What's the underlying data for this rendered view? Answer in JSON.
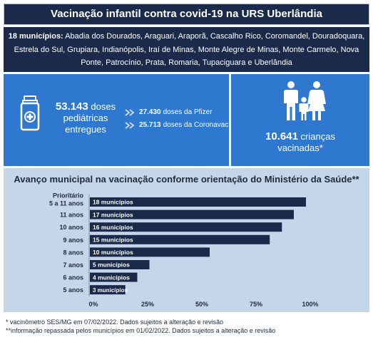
{
  "header": {
    "title": "Vacinação infantil contra covid-19 na URS Uberlândia"
  },
  "municipios": {
    "label": "18 municípios:",
    "list": "Abadia dos Dourados, Araguari, Araporã, Cascalho Rico, Coromandel, Douradoquara, Estrela do Sul, Grupiara, Indianópolis, Iraí de Minas, Monte Alegre de Minas, Monte Carmelo, Nova Ponte, Patrocínio, Prata, Romaria, Tupaciguara e Uberlândia"
  },
  "doses": {
    "total": "53.143",
    "total_label_1": "doses",
    "total_label_2": "pediátricas",
    "total_label_3": "entregues",
    "pfizer_value": "27.430",
    "pfizer_label": "doses da Pfizer",
    "coronavac_value": "25.713",
    "coronavac_label": "doses da Coronavac",
    "icon": "vaccine-vial-icon"
  },
  "children": {
    "value": "10.641",
    "label_1": "crianças",
    "label_2": "vacinadas*",
    "icon": "family-icon"
  },
  "chart": {
    "title": "Avanço municipal na vacinação conforme orientação do Ministério da Saúde**"
  },
  "chart_data": {
    "type": "bar",
    "orientation": "horizontal",
    "categories": [
      "Prioritário\n5 a 11 anos",
      "11 anos",
      "10 anos",
      "9 anos",
      "8 anos",
      "7 anos",
      "6 anos",
      "5 anos"
    ],
    "values": [
      100,
      94.4,
      88.9,
      83.3,
      55.6,
      27.8,
      22.2,
      16.7
    ],
    "data_labels": [
      "18 municípios",
      "17 municípios",
      "16 municípios",
      "15 municípios",
      "10 municípios",
      "5 municípios",
      "4 municípios",
      "3 municípios"
    ],
    "xticks": [
      "0%",
      "25%",
      "50%",
      "75%",
      "100%"
    ],
    "xlim": [
      0,
      100
    ],
    "grid": false,
    "bar_color": "#1b2a4a"
  },
  "footnotes": {
    "note1": "* vacinômetro SES/MG em 07/02/2022. Dados sujeitos a alteração e revisão",
    "note2": "**informação repassada pelos municípios em 01/02/2022. Dados sujeitos a alteração e revisão"
  },
  "colors": {
    "navy": "#1b2a4a",
    "blue": "#2e78d0",
    "light_blue": "#c6d6ea"
  }
}
